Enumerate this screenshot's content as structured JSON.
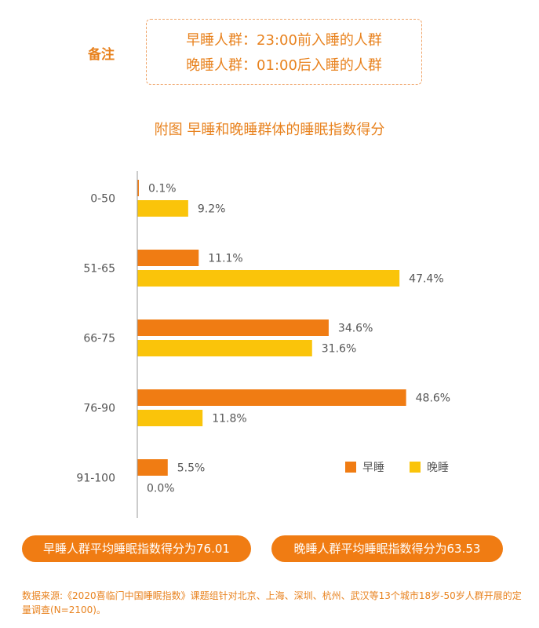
{
  "note": {
    "label": "备注",
    "line1": "早睡人群：23:00前入睡的人群",
    "line2": "晚睡人群：01:00后入睡的人群"
  },
  "chart_data": {
    "type": "bar",
    "orientation": "horizontal",
    "title": "附图 早睡和晚睡群体的睡眠指数得分",
    "categories": [
      "0-50",
      "51-65",
      "66-75",
      "76-90",
      "91-100"
    ],
    "series": [
      {
        "name": "早睡",
        "color": "#f07c13",
        "values": [
          0.1,
          11.1,
          34.6,
          48.6,
          5.5
        ],
        "labels": [
          "0.1%",
          "11.1%",
          "34.6%",
          "48.6%",
          "5.5%"
        ]
      },
      {
        "name": "晚睡",
        "color": "#fac40a",
        "values": [
          9.2,
          47.4,
          31.6,
          11.8,
          0.0
        ],
        "labels": [
          "9.2%",
          "47.4%",
          "31.6%",
          "11.8%",
          "0.0%"
        ]
      }
    ],
    "xlim": [
      0,
      50
    ],
    "grid": false,
    "legend": "bottom-right"
  },
  "summary": {
    "early": "早睡人群平均睡眠指数得分为76.01",
    "late": "晚睡人群平均睡眠指数得分为63.53"
  },
  "source": "数据来源:《2020喜临门中国睡眠指数》课题组针对北京、上海、深圳、杭州、武汉等13个城市18岁-50岁人群开展的定量调查(N=2100)。"
}
